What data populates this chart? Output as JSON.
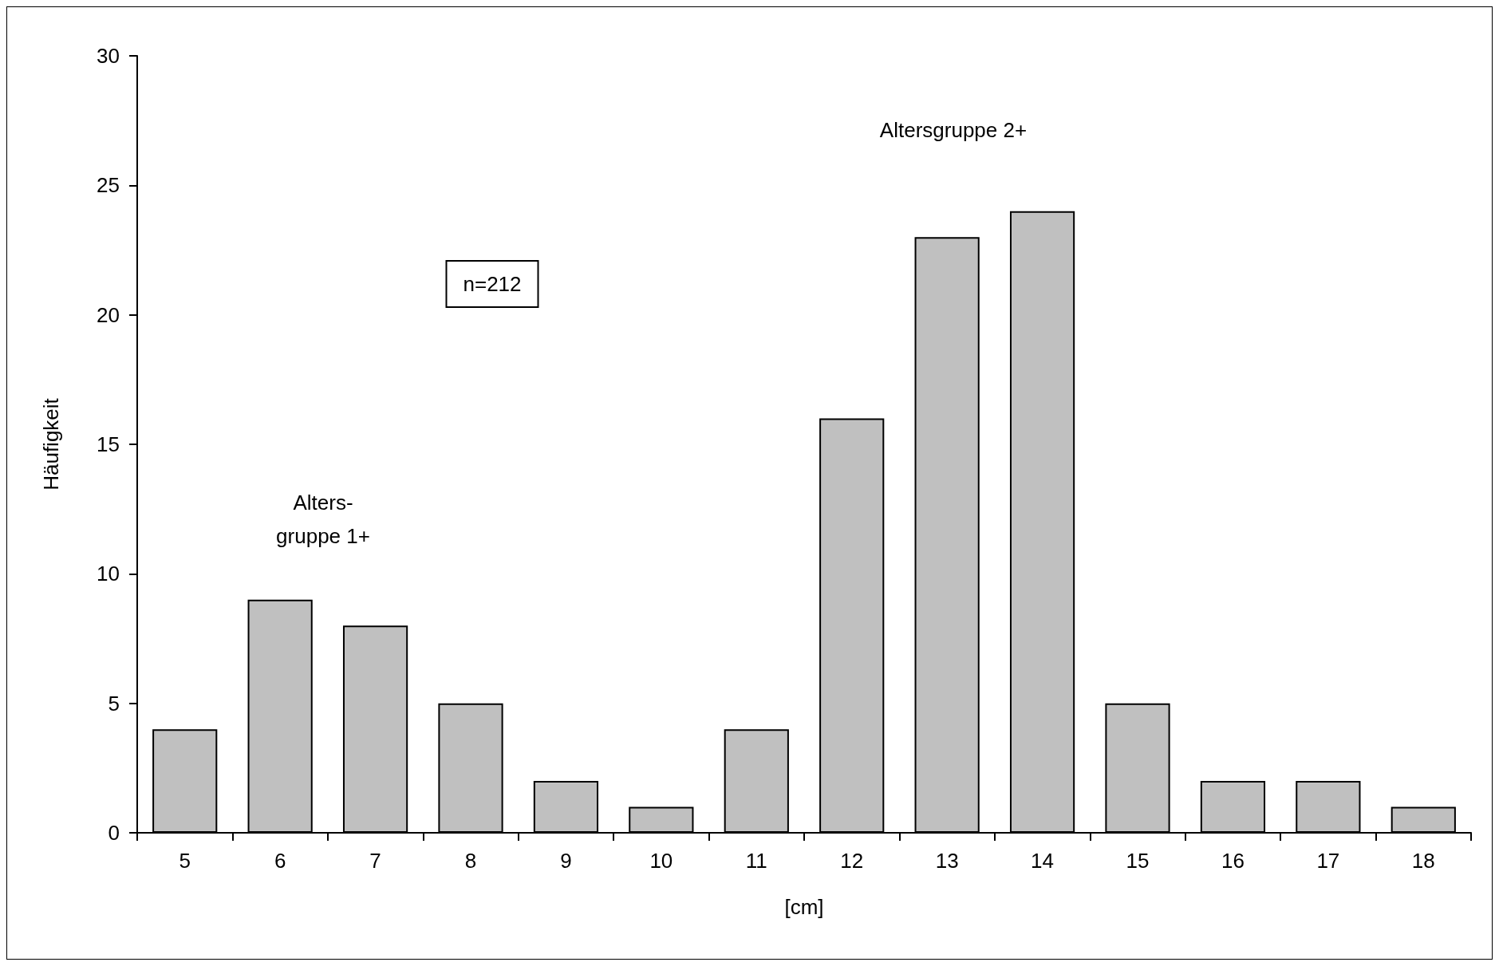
{
  "chart_data": {
    "type": "bar",
    "xlabel": "[cm]",
    "ylabel": "Häufigkeit",
    "categories": [
      "5",
      "6",
      "7",
      "8",
      "9",
      "10",
      "11",
      "12",
      "13",
      "14",
      "15",
      "16",
      "17",
      "18"
    ],
    "values": [
      4,
      9,
      8,
      5,
      2,
      1,
      4,
      16,
      23,
      24,
      5,
      2,
      2,
      1
    ],
    "color": "#c0c0c0",
    "ylim": [
      0,
      30
    ],
    "yticks": [
      0,
      5,
      10,
      15,
      20,
      25,
      30
    ],
    "grid": false,
    "annotations": [
      "n=212",
      "Alters-\ngruppe 1+",
      "Altersgruppe 2+"
    ]
  }
}
